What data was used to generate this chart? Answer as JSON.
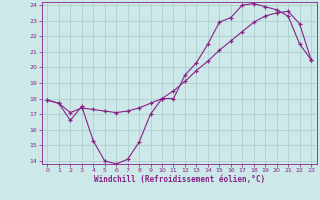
{
  "xlabel": "Windchill (Refroidissement éolien,°C)",
  "bg_color": "#cce8e8",
  "line_color": "#882288",
  "grid_color": "#aacccc",
  "xlim": [
    -0.5,
    23.5
  ],
  "ylim": [
    13.8,
    24.2
  ],
  "xticks": [
    0,
    1,
    2,
    3,
    4,
    5,
    6,
    7,
    8,
    9,
    10,
    11,
    12,
    13,
    14,
    15,
    16,
    17,
    18,
    19,
    20,
    21,
    22,
    23
  ],
  "yticks": [
    14,
    15,
    16,
    17,
    18,
    19,
    20,
    21,
    22,
    23,
    24
  ],
  "curve1_x": [
    0,
    1,
    2,
    3,
    4,
    5,
    6,
    7,
    8,
    9,
    10,
    11,
    12,
    13,
    14,
    15,
    16,
    17,
    18,
    19,
    20,
    21,
    22,
    23
  ],
  "curve1_y": [
    17.9,
    17.7,
    16.6,
    17.5,
    15.3,
    14.0,
    13.8,
    14.1,
    15.2,
    17.0,
    18.0,
    18.0,
    19.5,
    20.3,
    21.5,
    22.9,
    23.2,
    24.0,
    24.1,
    23.9,
    23.7,
    23.3,
    21.5,
    20.5
  ],
  "curve2_x": [
    0,
    1,
    2,
    3,
    4,
    5,
    6,
    7,
    8,
    9,
    10,
    11,
    12,
    13,
    14,
    15,
    16,
    17,
    18,
    19,
    20,
    21,
    22,
    23
  ],
  "curve2_y": [
    17.9,
    17.7,
    17.1,
    17.4,
    17.3,
    17.2,
    17.1,
    17.2,
    17.4,
    17.7,
    18.0,
    18.5,
    19.1,
    19.8,
    20.4,
    21.1,
    21.7,
    22.3,
    22.9,
    23.3,
    23.5,
    23.6,
    22.8,
    20.5
  ]
}
